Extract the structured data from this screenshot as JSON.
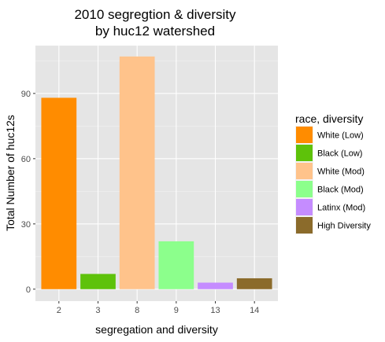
{
  "chart_data": {
    "type": "bar",
    "title_lines": [
      "2010 segregtion & diversity",
      "by huc12 watershed"
    ],
    "xlabel": "segregation and diversity",
    "ylabel": "Total Number of huc12s",
    "categories": [
      "2",
      "3",
      "8",
      "9",
      "13",
      "14"
    ],
    "values": [
      88,
      7,
      107,
      22,
      3,
      5
    ],
    "bar_colors": [
      "#ff8c00",
      "#5ec20a",
      "#ffc38b",
      "#8cff8c",
      "#c58cff",
      "#8b6b2b"
    ],
    "yticks": [
      "0",
      "30",
      "60",
      "90"
    ],
    "ytick_values": [
      0,
      30,
      60,
      90
    ],
    "ylim": [
      -5.5,
      112
    ],
    "grid": true,
    "panel_background": "#e5e5e5",
    "legend": {
      "title": "race, diversity",
      "placement": "right",
      "items": [
        {
          "label": "White (Low)",
          "color": "#ff8c00"
        },
        {
          "label": "Black (Low)",
          "color": "#5ec20a"
        },
        {
          "label": "White (Mod)",
          "color": "#ffc38b"
        },
        {
          "label": "Black (Mod)",
          "color": "#8cff8c"
        },
        {
          "label": "Latinx (Mod)",
          "color": "#c58cff"
        },
        {
          "label": "High Diversity",
          "color": "#8b6b2b"
        }
      ]
    }
  }
}
